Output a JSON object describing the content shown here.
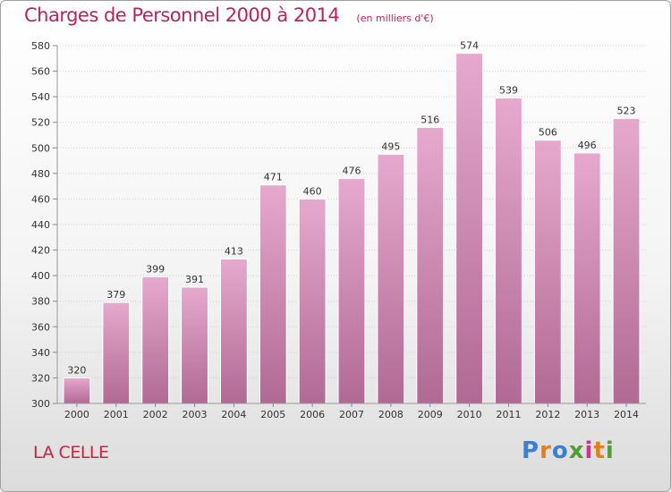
{
  "chart_data": {
    "type": "bar",
    "title": "Charges de Personnel 2000 à 2014",
    "subtitle": "(en milliers d'€)",
    "categories": [
      "2000",
      "2001",
      "2002",
      "2003",
      "2004",
      "2005",
      "2006",
      "2007",
      "2008",
      "2009",
      "2010",
      "2011",
      "2012",
      "2013",
      "2014"
    ],
    "values": [
      320,
      379,
      399,
      391,
      413,
      471,
      460,
      476,
      495,
      516,
      574,
      539,
      506,
      496,
      523
    ],
    "xlabel": "",
    "ylabel": "",
    "ylim": [
      300,
      580
    ],
    "yticks": [
      300,
      320,
      340,
      360,
      380,
      400,
      420,
      440,
      460,
      480,
      500,
      520,
      540,
      560,
      580
    ],
    "grid": true,
    "legend": "none",
    "colors": {
      "bar_top": "#e6a9cd",
      "bar_bottom": "#b06a93",
      "title": "#b8245f"
    }
  },
  "footer": {
    "place": "LA CELLE",
    "brand": "Proxiti"
  }
}
